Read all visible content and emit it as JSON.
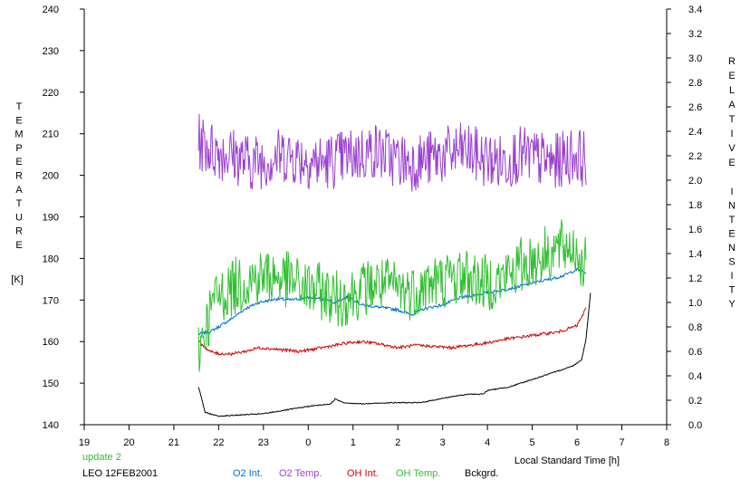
{
  "chart_data": {
    "type": "line",
    "title": "",
    "xlabel": "Local Standard Time [h]",
    "ylabel_left_chars": [
      "T",
      "E",
      "M",
      "P",
      "E",
      "R",
      "A",
      "T",
      "U",
      "R",
      "E"
    ],
    "ylabel_left_unit": "[K]",
    "ylabel_right_chars": [
      "R",
      "E",
      "L",
      "A",
      "T",
      "I",
      "V",
      "E",
      "I",
      "N",
      "T",
      "E",
      "N",
      "S",
      "I",
      "T",
      "Y"
    ],
    "xlim": [
      19,
      32
    ],
    "ylim_left": [
      140,
      240
    ],
    "ylim_right": [
      0.0,
      3.4
    ],
    "grid": false,
    "x_ticks": [
      {
        "v": 19,
        "label": "19"
      },
      {
        "v": 20,
        "label": "20"
      },
      {
        "v": 21,
        "label": "21"
      },
      {
        "v": 22,
        "label": "22"
      },
      {
        "v": 23,
        "label": "23"
      },
      {
        "v": 24,
        "label": "0"
      },
      {
        "v": 25,
        "label": "1"
      },
      {
        "v": 26,
        "label": "2"
      },
      {
        "v": 27,
        "label": "3"
      },
      {
        "v": 28,
        "label": "4"
      },
      {
        "v": 29,
        "label": "5"
      },
      {
        "v": 30,
        "label": "6"
      },
      {
        "v": 31,
        "label": "7"
      },
      {
        "v": 32,
        "label": "8"
      }
    ],
    "y_left_ticks": [
      {
        "v": 140,
        "label": "140"
      },
      {
        "v": 150,
        "label": "150"
      },
      {
        "v": 160,
        "label": "160"
      },
      {
        "v": 170,
        "label": "170"
      },
      {
        "v": 180,
        "label": "180"
      },
      {
        "v": 190,
        "label": "190"
      },
      {
        "v": 200,
        "label": "200"
      },
      {
        "v": 210,
        "label": "210"
      },
      {
        "v": 220,
        "label": "220"
      },
      {
        "v": 230,
        "label": "230"
      },
      {
        "v": 240,
        "label": "240"
      }
    ],
    "y_right_ticks": [
      {
        "v": 0.0,
        "label": "0.0"
      },
      {
        "v": 0.2,
        "label": "0.2"
      },
      {
        "v": 0.4,
        "label": "0.4"
      },
      {
        "v": 0.6,
        "label": "0.6"
      },
      {
        "v": 0.8,
        "label": "0.8"
      },
      {
        "v": 1.0,
        "label": "1.0"
      },
      {
        "v": 1.2,
        "label": "1.2"
      },
      {
        "v": 1.4,
        "label": "1.4"
      },
      {
        "v": 1.6,
        "label": "1.6"
      },
      {
        "v": 1.8,
        "label": "1.8"
      },
      {
        "v": 2.0,
        "label": "2.0"
      },
      {
        "v": 2.2,
        "label": "2.2"
      },
      {
        "v": 2.4,
        "label": "2.4"
      },
      {
        "v": 2.6,
        "label": "2.6"
      },
      {
        "v": 2.8,
        "label": "2.8"
      },
      {
        "v": 3.0,
        "label": "3.0"
      },
      {
        "v": 3.2,
        "label": "3.2"
      },
      {
        "v": 3.4,
        "label": "3.4"
      }
    ],
    "series": [
      {
        "name": "O2 Int.",
        "axis": "right",
        "color": "#0070d0",
        "x": [
          21.55,
          21.8,
          22.0,
          22.3,
          22.6,
          22.9,
          23.3,
          23.6,
          24.0,
          24.3,
          24.6,
          24.9,
          25.2,
          25.6,
          26.0,
          26.3,
          26.6,
          27.0,
          27.4,
          27.7,
          28.0,
          28.3,
          28.7,
          29.0,
          29.4,
          29.7,
          30.0,
          30.2
        ],
        "y": [
          0.74,
          0.76,
          0.8,
          0.87,
          0.95,
          1.0,
          1.03,
          1.02,
          1.04,
          1.03,
          1.0,
          1.05,
          0.98,
          0.96,
          0.94,
          0.9,
          0.95,
          0.98,
          1.04,
          1.06,
          1.08,
          1.1,
          1.13,
          1.16,
          1.19,
          1.22,
          1.27,
          1.24
        ]
      },
      {
        "name": "O2 Temp.",
        "axis": "left",
        "color": "#9a40d0",
        "x": [
          21.55,
          21.9,
          22.3,
          22.7,
          23.1,
          23.5,
          23.9,
          24.3,
          24.7,
          25.1,
          25.5,
          25.9,
          26.3,
          26.7,
          27.1,
          27.5,
          27.9,
          28.3,
          28.7,
          29.1,
          29.5,
          29.9,
          30.2
        ],
        "y": [
          208,
          206,
          205,
          203,
          204,
          205,
          204,
          203,
          204,
          205,
          206,
          204,
          203,
          204,
          205,
          206,
          204,
          203,
          205,
          204,
          203,
          205,
          204
        ]
      },
      {
        "name": "OH Int.",
        "axis": "right",
        "color": "#d00000",
        "x": [
          21.55,
          21.8,
          22.0,
          22.3,
          22.6,
          22.9,
          23.2,
          23.5,
          23.8,
          24.0,
          24.3,
          24.6,
          24.9,
          25.2,
          25.6,
          26.0,
          26.4,
          26.8,
          27.2,
          27.6,
          28.0,
          28.4,
          28.8,
          29.2,
          29.6,
          30.0,
          30.2
        ],
        "y": [
          0.68,
          0.6,
          0.58,
          0.58,
          0.6,
          0.63,
          0.62,
          0.61,
          0.6,
          0.61,
          0.63,
          0.65,
          0.67,
          0.68,
          0.66,
          0.63,
          0.65,
          0.64,
          0.63,
          0.65,
          0.67,
          0.7,
          0.72,
          0.74,
          0.76,
          0.81,
          0.95
        ]
      },
      {
        "name": "OH Temp.",
        "axis": "left",
        "color": "#30c030",
        "x": [
          21.55,
          21.9,
          22.3,
          22.7,
          23.1,
          23.5,
          23.9,
          24.3,
          24.7,
          25.1,
          25.5,
          25.9,
          26.3,
          26.7,
          27.1,
          27.5,
          27.9,
          28.3,
          28.7,
          29.1,
          29.5,
          29.9,
          30.2
        ],
        "y": [
          158,
          170,
          173,
          175,
          176,
          175,
          173,
          172,
          170,
          172,
          174,
          173,
          172,
          174,
          175,
          176,
          174,
          175,
          178,
          180,
          182,
          183,
          178
        ]
      },
      {
        "name": "Bckgrd.",
        "axis": "right",
        "color": "#000000",
        "x": [
          21.55,
          21.7,
          22.0,
          22.5,
          23.0,
          23.5,
          24.0,
          24.5,
          24.6,
          24.8,
          25.2,
          25.8,
          26.5,
          27.2,
          27.6,
          27.9,
          28.0,
          28.5,
          29.0,
          29.5,
          29.9,
          30.1,
          30.2,
          30.3
        ],
        "y": [
          0.31,
          0.1,
          0.07,
          0.08,
          0.09,
          0.12,
          0.15,
          0.17,
          0.21,
          0.18,
          0.17,
          0.18,
          0.18,
          0.23,
          0.25,
          0.25,
          0.28,
          0.31,
          0.37,
          0.43,
          0.48,
          0.53,
          0.7,
          1.08
        ]
      }
    ]
  },
  "footer": {
    "status": "update 2",
    "station": "LEO 12FEB2001"
  },
  "colors": {
    "status": "#30c030",
    "axis": "#000000"
  }
}
